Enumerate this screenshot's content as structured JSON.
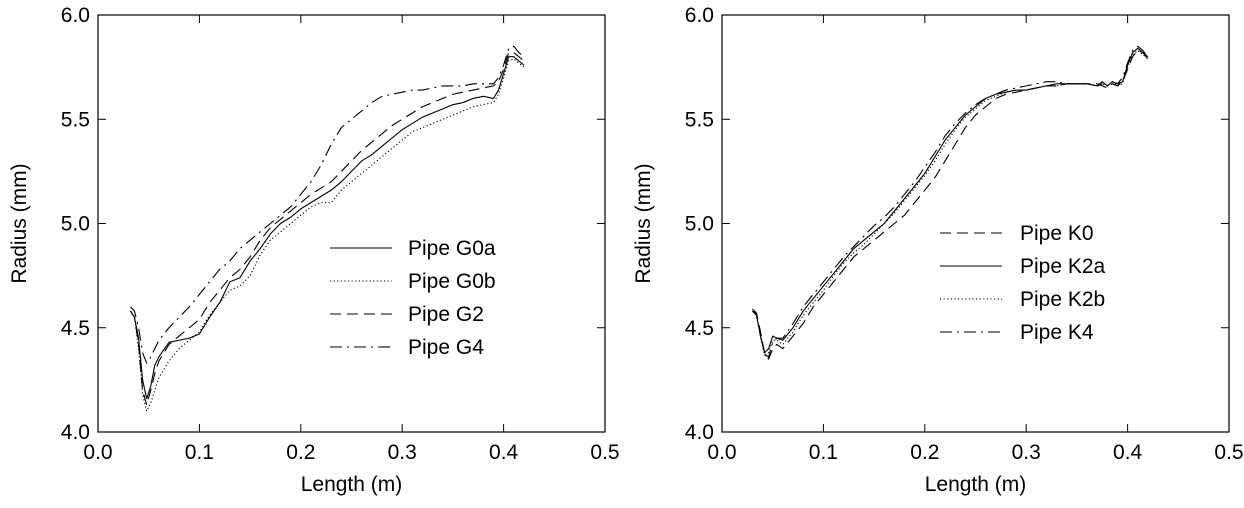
{
  "chart_data": [
    {
      "type": "line",
      "xlabel": "Length (m)",
      "ylabel": "Radius (mm)",
      "xlim": [
        0.0,
        0.5
      ],
      "ylim": [
        4.0,
        6.0
      ],
      "xticks": [
        "0.0",
        "0.1",
        "0.2",
        "0.3",
        "0.4",
        "0.5"
      ],
      "yticks": [
        "4.0",
        "4.5",
        "5.0",
        "5.5",
        "6.0"
      ],
      "grid": false,
      "legend_position": "center-right",
      "series": [
        {
          "name": "Pipe G0a",
          "style": "solid",
          "x": [
            0.032,
            0.036,
            0.04,
            0.044,
            0.048,
            0.052,
            0.056,
            0.06,
            0.07,
            0.08,
            0.09,
            0.1,
            0.11,
            0.12,
            0.13,
            0.14,
            0.15,
            0.16,
            0.17,
            0.18,
            0.19,
            0.2,
            0.21,
            0.22,
            0.23,
            0.24,
            0.25,
            0.26,
            0.27,
            0.28,
            0.29,
            0.3,
            0.31,
            0.32,
            0.33,
            0.34,
            0.35,
            0.36,
            0.37,
            0.38,
            0.39,
            0.395,
            0.4,
            0.405,
            0.41,
            0.415,
            0.42
          ],
          "y": [
            4.58,
            4.55,
            4.45,
            4.25,
            4.16,
            4.22,
            4.32,
            4.36,
            4.43,
            4.44,
            4.45,
            4.47,
            4.55,
            4.62,
            4.72,
            4.74,
            4.82,
            4.88,
            4.95,
            5.0,
            5.03,
            5.07,
            5.1,
            5.13,
            5.16,
            5.2,
            5.25,
            5.3,
            5.33,
            5.37,
            5.41,
            5.45,
            5.48,
            5.51,
            5.53,
            5.55,
            5.57,
            5.58,
            5.6,
            5.61,
            5.6,
            5.64,
            5.72,
            5.8,
            5.8,
            5.78,
            5.76
          ]
        },
        {
          "name": "Pipe G0b",
          "style": "dotted",
          "x": [
            0.032,
            0.036,
            0.04,
            0.044,
            0.048,
            0.052,
            0.056,
            0.06,
            0.07,
            0.08,
            0.09,
            0.1,
            0.11,
            0.12,
            0.13,
            0.14,
            0.15,
            0.16,
            0.17,
            0.18,
            0.19,
            0.2,
            0.21,
            0.22,
            0.23,
            0.24,
            0.25,
            0.26,
            0.27,
            0.28,
            0.29,
            0.3,
            0.31,
            0.32,
            0.33,
            0.34,
            0.35,
            0.36,
            0.37,
            0.38,
            0.39,
            0.395,
            0.4,
            0.405,
            0.41,
            0.415,
            0.42
          ],
          "y": [
            4.58,
            4.55,
            4.4,
            4.18,
            4.1,
            4.14,
            4.2,
            4.26,
            4.34,
            4.4,
            4.44,
            4.48,
            4.56,
            4.62,
            4.68,
            4.7,
            4.75,
            4.85,
            4.92,
            4.96,
            5.0,
            5.04,
            5.08,
            5.1,
            5.1,
            5.16,
            5.2,
            5.24,
            5.28,
            5.32,
            5.36,
            5.4,
            5.44,
            5.46,
            5.48,
            5.5,
            5.52,
            5.54,
            5.56,
            5.57,
            5.58,
            5.62,
            5.7,
            5.78,
            5.79,
            5.77,
            5.75
          ]
        },
        {
          "name": "Pipe G2",
          "style": "dashed",
          "x": [
            0.032,
            0.036,
            0.04,
            0.044,
            0.048,
            0.052,
            0.056,
            0.06,
            0.07,
            0.08,
            0.09,
            0.1,
            0.11,
            0.12,
            0.13,
            0.14,
            0.15,
            0.16,
            0.17,
            0.18,
            0.19,
            0.2,
            0.21,
            0.22,
            0.23,
            0.24,
            0.25,
            0.26,
            0.27,
            0.28,
            0.29,
            0.3,
            0.31,
            0.32,
            0.33,
            0.34,
            0.35,
            0.36,
            0.37,
            0.38,
            0.39,
            0.395,
            0.4,
            0.405,
            0.41,
            0.415,
            0.42
          ],
          "y": [
            4.58,
            4.55,
            4.42,
            4.2,
            4.13,
            4.2,
            4.28,
            4.34,
            4.42,
            4.46,
            4.5,
            4.54,
            4.62,
            4.68,
            4.74,
            4.78,
            4.84,
            4.92,
            4.98,
            5.02,
            5.06,
            5.1,
            5.14,
            5.17,
            5.2,
            5.25,
            5.3,
            5.35,
            5.39,
            5.43,
            5.47,
            5.5,
            5.53,
            5.56,
            5.58,
            5.6,
            5.62,
            5.63,
            5.64,
            5.65,
            5.66,
            5.68,
            5.74,
            5.82,
            5.82,
            5.8,
            5.78
          ]
        },
        {
          "name": "Pipe G4",
          "style": "dashdot",
          "x": [
            0.032,
            0.036,
            0.04,
            0.044,
            0.048,
            0.052,
            0.056,
            0.06,
            0.07,
            0.08,
            0.09,
            0.1,
            0.11,
            0.12,
            0.13,
            0.14,
            0.15,
            0.16,
            0.17,
            0.18,
            0.19,
            0.2,
            0.21,
            0.22,
            0.23,
            0.24,
            0.25,
            0.26,
            0.27,
            0.28,
            0.29,
            0.3,
            0.31,
            0.32,
            0.33,
            0.34,
            0.35,
            0.36,
            0.37,
            0.38,
            0.39,
            0.395,
            0.4,
            0.405,
            0.41,
            0.415,
            0.42
          ],
          "y": [
            4.6,
            4.58,
            4.5,
            4.38,
            4.33,
            4.36,
            4.4,
            4.44,
            4.5,
            4.55,
            4.6,
            4.66,
            4.72,
            4.78,
            4.82,
            4.88,
            4.92,
            4.96,
            5.0,
            5.04,
            5.08,
            5.14,
            5.2,
            5.28,
            5.38,
            5.46,
            5.5,
            5.54,
            5.58,
            5.61,
            5.62,
            5.63,
            5.64,
            5.64,
            5.65,
            5.66,
            5.66,
            5.66,
            5.67,
            5.67,
            5.67,
            5.7,
            5.76,
            5.84,
            5.85,
            5.82,
            5.8
          ]
        }
      ]
    },
    {
      "type": "line",
      "xlabel": "Length (m)",
      "ylabel": "Radius (mm)",
      "xlim": [
        0.0,
        0.5
      ],
      "ylim": [
        4.0,
        6.0
      ],
      "xticks": [
        "0.0",
        "0.1",
        "0.2",
        "0.3",
        "0.4",
        "0.5"
      ],
      "yticks": [
        "4.0",
        "4.5",
        "5.0",
        "5.5",
        "6.0"
      ],
      "grid": false,
      "legend_position": "center-right",
      "series": [
        {
          "name": "Pipe K0",
          "style": "dashed",
          "x": [
            0.03,
            0.034,
            0.038,
            0.042,
            0.046,
            0.05,
            0.054,
            0.06,
            0.07,
            0.08,
            0.09,
            0.1,
            0.11,
            0.12,
            0.13,
            0.14,
            0.15,
            0.16,
            0.17,
            0.18,
            0.19,
            0.2,
            0.21,
            0.22,
            0.23,
            0.24,
            0.25,
            0.26,
            0.27,
            0.28,
            0.29,
            0.3,
            0.31,
            0.32,
            0.33,
            0.34,
            0.35,
            0.36,
            0.37,
            0.375,
            0.38,
            0.385,
            0.39,
            0.395,
            0.4,
            0.405,
            0.41,
            0.415,
            0.42
          ],
          "y": [
            4.58,
            4.57,
            4.48,
            4.38,
            4.35,
            4.4,
            4.42,
            4.4,
            4.46,
            4.52,
            4.6,
            4.66,
            4.72,
            4.78,
            4.84,
            4.88,
            4.92,
            4.96,
            5.0,
            5.04,
            5.1,
            5.16,
            5.22,
            5.3,
            5.38,
            5.46,
            5.52,
            5.56,
            5.6,
            5.62,
            5.63,
            5.64,
            5.65,
            5.66,
            5.66,
            5.67,
            5.67,
            5.67,
            5.67,
            5.66,
            5.65,
            5.67,
            5.66,
            5.68,
            5.74,
            5.8,
            5.83,
            5.82,
            5.79
          ]
        },
        {
          "name": "Pipe K2a",
          "style": "solid",
          "x": [
            0.03,
            0.034,
            0.038,
            0.042,
            0.046,
            0.05,
            0.054,
            0.06,
            0.07,
            0.08,
            0.09,
            0.1,
            0.11,
            0.12,
            0.13,
            0.14,
            0.15,
            0.16,
            0.17,
            0.18,
            0.19,
            0.2,
            0.21,
            0.22,
            0.23,
            0.24,
            0.25,
            0.26,
            0.27,
            0.28,
            0.29,
            0.3,
            0.31,
            0.32,
            0.33,
            0.34,
            0.35,
            0.36,
            0.37,
            0.375,
            0.38,
            0.385,
            0.39,
            0.395,
            0.4,
            0.405,
            0.41,
            0.415,
            0.42
          ],
          "y": [
            4.58,
            4.56,
            4.46,
            4.38,
            4.4,
            4.46,
            4.45,
            4.44,
            4.5,
            4.58,
            4.64,
            4.7,
            4.76,
            4.82,
            4.88,
            4.92,
            4.96,
            5.0,
            5.06,
            5.12,
            5.18,
            5.24,
            5.32,
            5.4,
            5.46,
            5.52,
            5.56,
            5.6,
            5.62,
            5.63,
            5.64,
            5.64,
            5.65,
            5.66,
            5.67,
            5.67,
            5.67,
            5.67,
            5.66,
            5.68,
            5.66,
            5.68,
            5.67,
            5.68,
            5.76,
            5.82,
            5.84,
            5.82,
            5.8
          ]
        },
        {
          "name": "Pipe K2b",
          "style": "dotted",
          "x": [
            0.03,
            0.034,
            0.038,
            0.042,
            0.046,
            0.05,
            0.054,
            0.06,
            0.07,
            0.08,
            0.09,
            0.1,
            0.11,
            0.12,
            0.13,
            0.14,
            0.15,
            0.16,
            0.17,
            0.18,
            0.19,
            0.2,
            0.21,
            0.22,
            0.23,
            0.24,
            0.25,
            0.26,
            0.27,
            0.28,
            0.29,
            0.3,
            0.31,
            0.32,
            0.33,
            0.34,
            0.35,
            0.36,
            0.37,
            0.375,
            0.38,
            0.385,
            0.39,
            0.395,
            0.4,
            0.405,
            0.41,
            0.415,
            0.42
          ],
          "y": [
            4.58,
            4.56,
            4.46,
            4.37,
            4.38,
            4.44,
            4.44,
            4.42,
            4.48,
            4.56,
            4.62,
            4.68,
            4.75,
            4.81,
            4.86,
            4.9,
            4.95,
            5.0,
            5.05,
            5.11,
            5.17,
            5.23,
            5.3,
            5.38,
            5.45,
            5.51,
            5.55,
            5.59,
            5.61,
            5.63,
            5.64,
            5.64,
            5.65,
            5.66,
            5.66,
            5.67,
            5.67,
            5.67,
            5.66,
            5.67,
            5.66,
            5.68,
            5.66,
            5.67,
            5.75,
            5.81,
            5.83,
            5.81,
            5.79
          ]
        },
        {
          "name": "Pipe K4",
          "style": "dashdot",
          "x": [
            0.03,
            0.034,
            0.038,
            0.042,
            0.046,
            0.05,
            0.054,
            0.06,
            0.07,
            0.08,
            0.09,
            0.1,
            0.11,
            0.12,
            0.13,
            0.14,
            0.15,
            0.16,
            0.17,
            0.18,
            0.19,
            0.2,
            0.21,
            0.22,
            0.23,
            0.24,
            0.25,
            0.26,
            0.27,
            0.28,
            0.29,
            0.3,
            0.31,
            0.32,
            0.33,
            0.34,
            0.35,
            0.36,
            0.37,
            0.375,
            0.38,
            0.385,
            0.39,
            0.395,
            0.4,
            0.405,
            0.41,
            0.415,
            0.42
          ],
          "y": [
            4.59,
            4.57,
            4.46,
            4.37,
            4.36,
            4.43,
            4.45,
            4.45,
            4.52,
            4.6,
            4.66,
            4.72,
            4.78,
            4.84,
            4.89,
            4.94,
            4.99,
            5.03,
            5.08,
            5.14,
            5.2,
            5.27,
            5.34,
            5.42,
            5.48,
            5.53,
            5.57,
            5.6,
            5.62,
            5.64,
            5.65,
            5.66,
            5.67,
            5.68,
            5.68,
            5.67,
            5.67,
            5.67,
            5.66,
            5.67,
            5.66,
            5.68,
            5.67,
            5.7,
            5.77,
            5.83,
            5.85,
            5.83,
            5.8
          ]
        }
      ]
    }
  ]
}
